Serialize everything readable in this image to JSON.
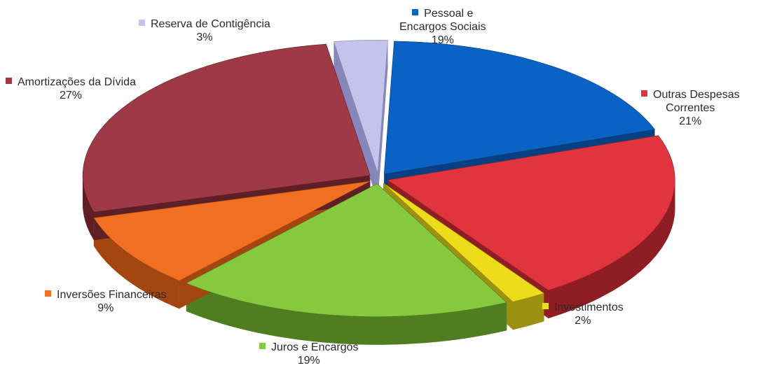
{
  "chart_data": {
    "type": "pie",
    "title": "",
    "series": [
      {
        "name": "Pessoal e Encargos Sociais",
        "label_lines": [
          "Pessoal e",
          "Encargos Sociais"
        ],
        "percent_label": "19%",
        "value": 19,
        "color": "#0a62c4",
        "dark": "#083f80"
      },
      {
        "name": "Outras Despesas Correntes",
        "label_lines": [
          "Outras Despesas",
          "Correntes"
        ],
        "percent_label": "21%",
        "value": 21,
        "color": "#e0343f",
        "dark": "#8f1d24"
      },
      {
        "name": "Investimentos",
        "label_lines": [
          "Investimentos"
        ],
        "percent_label": "2%",
        "value": 2,
        "color": "#ecdc1a",
        "dark": "#9c9010"
      },
      {
        "name": "Juros e Encargos",
        "label_lines": [
          "Juros e Encargos"
        ],
        "percent_label": "19%",
        "value": 19,
        "color": "#86c93e",
        "dark": "#4f7d20"
      },
      {
        "name": "Inversões Financeiras",
        "label_lines": [
          "Inversões Financeiras"
        ],
        "percent_label": "9%",
        "value": 9,
        "color": "#f06f23",
        "dark": "#a4460f"
      },
      {
        "name": "Amortizações da Dívida",
        "label_lines": [
          "Amortizações da Dívida"
        ],
        "percent_label": "27%",
        "value": 27,
        "color": "#9e3a46",
        "dark": "#5e1f27"
      },
      {
        "name": "Reserva de Contigência",
        "label_lines": [
          "Reserva de Contigência"
        ],
        "percent_label": "3%",
        "value": 3,
        "color": "#c3c3ec",
        "dark": "#8686b8"
      }
    ],
    "legend": "labels around slices",
    "style": "3d exploded pie"
  }
}
